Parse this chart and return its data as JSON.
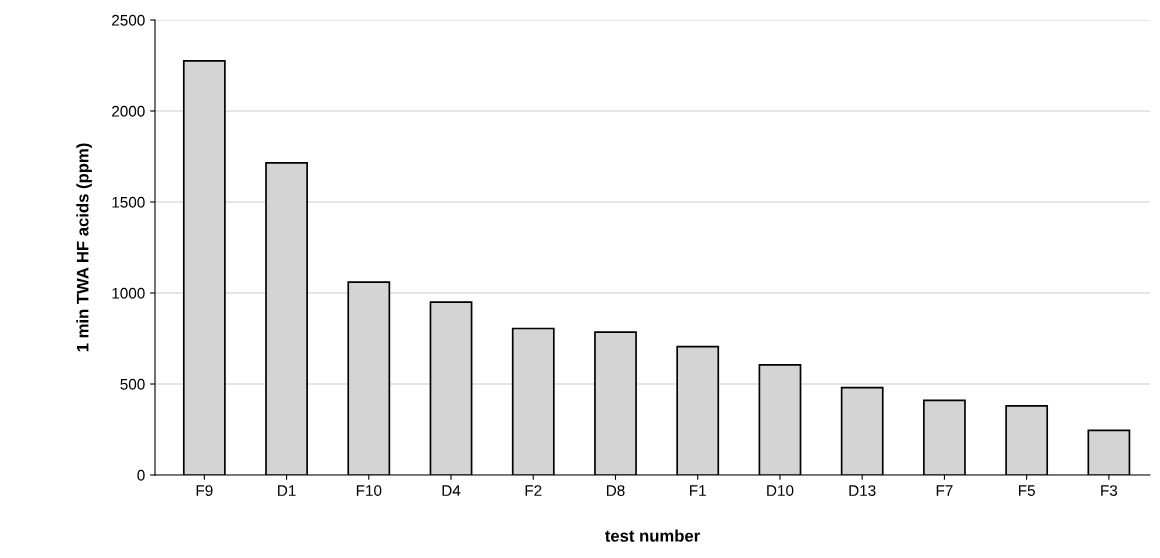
{
  "chart_data": {
    "type": "bar",
    "xlabel": "test number",
    "ylabel": "1 min TWA HF acids (ppm)",
    "categories": [
      "F9",
      "D1",
      "F10",
      "D4",
      "F2",
      "D8",
      "F1",
      "D10",
      "D13",
      "F7",
      "F5",
      "F3"
    ],
    "values": [
      2275,
      1715,
      1060,
      950,
      805,
      785,
      705,
      605,
      480,
      410,
      380,
      245
    ],
    "color": "#d4d4d4",
    "ylim": [
      0,
      2500
    ],
    "yticks": [
      0,
      500,
      1000,
      1500,
      2000,
      2500
    ],
    "grid": "y"
  }
}
